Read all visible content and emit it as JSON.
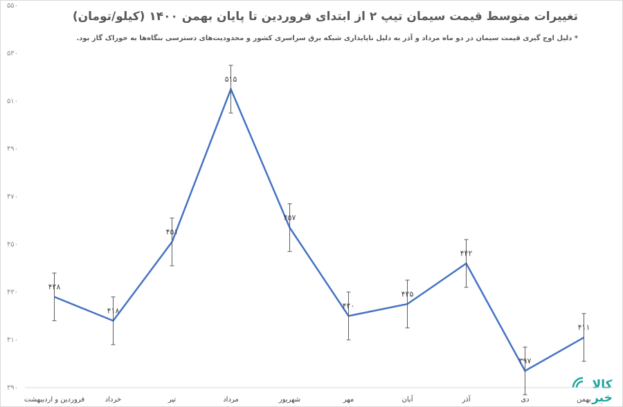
{
  "chart_data": {
    "type": "line",
    "title": "تغییرات متوسط قیمت سیمان تیپ ۲ از ابتدای فروردین تا پایان بهمن ۱۴۰۰ (کیلو/تومان)",
    "subtitle": "* دلیل اوج گیری قیمت سیمان در دو ماه مرداد و آذر به دلیل ناپایداری شبکه برق سراسری کشور و محدودیت‌های دسترسی بنگاه‌ها به خوراک گاز بود.",
    "categories": [
      "فروردین و اردیبهشت",
      "خرداد",
      "تیر",
      "مرداد",
      "شهریور",
      "مهر",
      "آبان",
      "آذر",
      "دی",
      "بهمن"
    ],
    "values": [
      428,
      418,
      451,
      515,
      457,
      420,
      425,
      442,
      397,
      411
    ],
    "value_labels": [
      "۴۲۸",
      "۴۱۸",
      "۴۵۱",
      "۵۱۵",
      "۴۵۷",
      "۴۲۰",
      "۴۲۵",
      "۴۴۲",
      "۳۹۷",
      "۴۱۱"
    ],
    "errors": [
      10,
      10,
      10,
      10,
      10,
      10,
      10,
      10,
      10,
      10
    ],
    "color": "#4472c4",
    "ylim": [
      390,
      550
    ],
    "yticks": [
      {
        "value": 390,
        "label": "۳۹۰"
      },
      {
        "value": 410,
        "label": "۴۱۰"
      },
      {
        "value": 430,
        "label": "۴۳۰"
      },
      {
        "value": 450,
        "label": "۴۵۰"
      },
      {
        "value": 470,
        "label": "۴۷۰"
      },
      {
        "value": 490,
        "label": "۴۹۰"
      },
      {
        "value": 510,
        "label": "۵۱۰"
      },
      {
        "value": 530,
        "label": "۵۳۰"
      },
      {
        "value": 550,
        "label": "۵۵۰"
      }
    ],
    "grid": false,
    "logo": [
      "کالا",
      "خبر"
    ]
  }
}
